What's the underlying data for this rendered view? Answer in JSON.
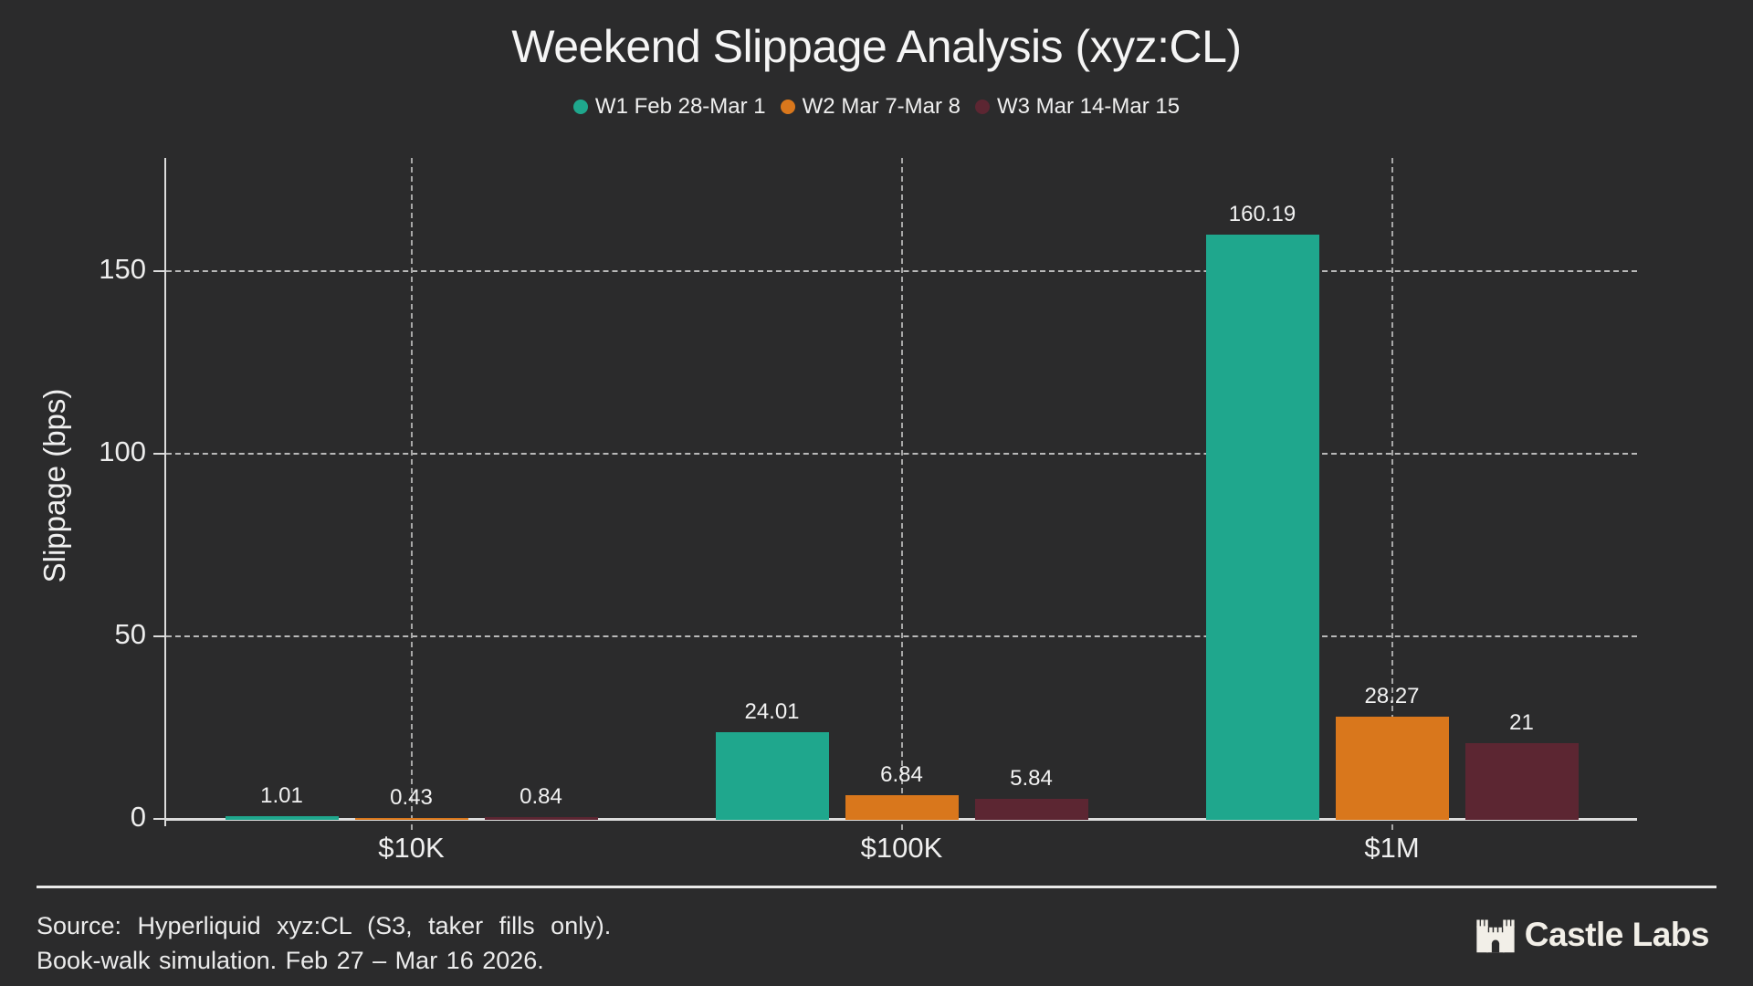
{
  "chart_data": {
    "type": "bar",
    "title": "Weekend Slippage Analysis (xyz:CL)",
    "ylabel": "Slippage (bps)",
    "xlabel": "",
    "categories": [
      "$10K",
      "$100K",
      "$1M"
    ],
    "series": [
      {
        "name": "W1 Feb 28-Mar 1",
        "color": "#1fa78d",
        "values": [
          1.01,
          24.01,
          160.19
        ],
        "labels": [
          "1.01",
          "24.01",
          "160.19"
        ]
      },
      {
        "name": "W2 Mar 7-Mar 8",
        "color": "#d9771c",
        "values": [
          0.43,
          6.84,
          28.27
        ],
        "labels": [
          "0.43",
          "6.84",
          "28.27"
        ]
      },
      {
        "name": "W3 Mar 14-Mar 15",
        "color": "#5c2632",
        "values": [
          0.84,
          5.84,
          21
        ],
        "labels": [
          "0.84",
          "5.84",
          "21"
        ]
      }
    ],
    "yticks": [
      0,
      50,
      100,
      150
    ],
    "ylim": [
      0,
      181
    ],
    "grid": true,
    "legend_position": "top",
    "background_color": "#2b2b2c",
    "text_color": "#f2f2f2"
  },
  "footer": {
    "source_line1": "Source: Hyperliquid xyz:CL (S3, taker fills only).",
    "source_line2": "Book-walk simulation. Feb 27 – Mar 16 2026.",
    "brand": "Castle Labs"
  }
}
